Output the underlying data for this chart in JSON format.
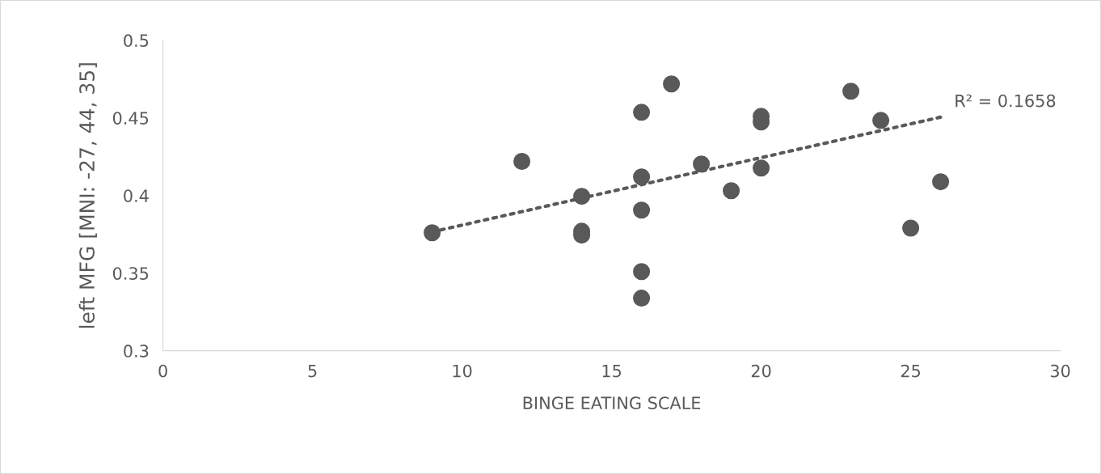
{
  "chart_data": {
    "type": "scatter",
    "xlabel": "BINGE EATING SCALE",
    "ylabel": "left MFG [MNI: -27, 44, 35]",
    "xlim": [
      0,
      30
    ],
    "xticks": [
      0,
      5,
      10,
      15,
      20,
      25,
      30
    ],
    "ylim": [
      0.3,
      0.5
    ],
    "yticks": [
      {
        "value": 0.3,
        "label": "0.3"
      },
      {
        "value": 0.35,
        "label": "0.35"
      },
      {
        "value": 0.4,
        "label": "0.4"
      },
      {
        "value": 0.45,
        "label": "0.45"
      },
      {
        "value": 0.5,
        "label": "0.5"
      }
    ],
    "grid": false,
    "legend": false,
    "series": [
      {
        "marker": "circle",
        "color": "#595959",
        "x": [
          9,
          12,
          14,
          14,
          14,
          16,
          16,
          16,
          16,
          16,
          17,
          18,
          19,
          20,
          20,
          20,
          23,
          24,
          25,
          26
        ],
        "values": [
          0.376,
          0.422,
          0.3995,
          0.377,
          0.3745,
          0.4536,
          0.412,
          0.3906,
          0.351,
          0.3339,
          0.4719,
          0.4203,
          0.4031,
          0.451,
          0.4474,
          0.4177,
          0.4672,
          0.4484,
          0.379,
          0.4089
        ]
      },
      {
        "type": "line",
        "color": "#595959",
        "line_style": "dotted",
        "x": [
          9,
          26
        ],
        "values": [
          0.3766,
          0.4505
        ]
      }
    ],
    "annotations": [
      {
        "text": "R² = 0.1658",
        "x": 26,
        "y": 0.4505
      }
    ]
  }
}
